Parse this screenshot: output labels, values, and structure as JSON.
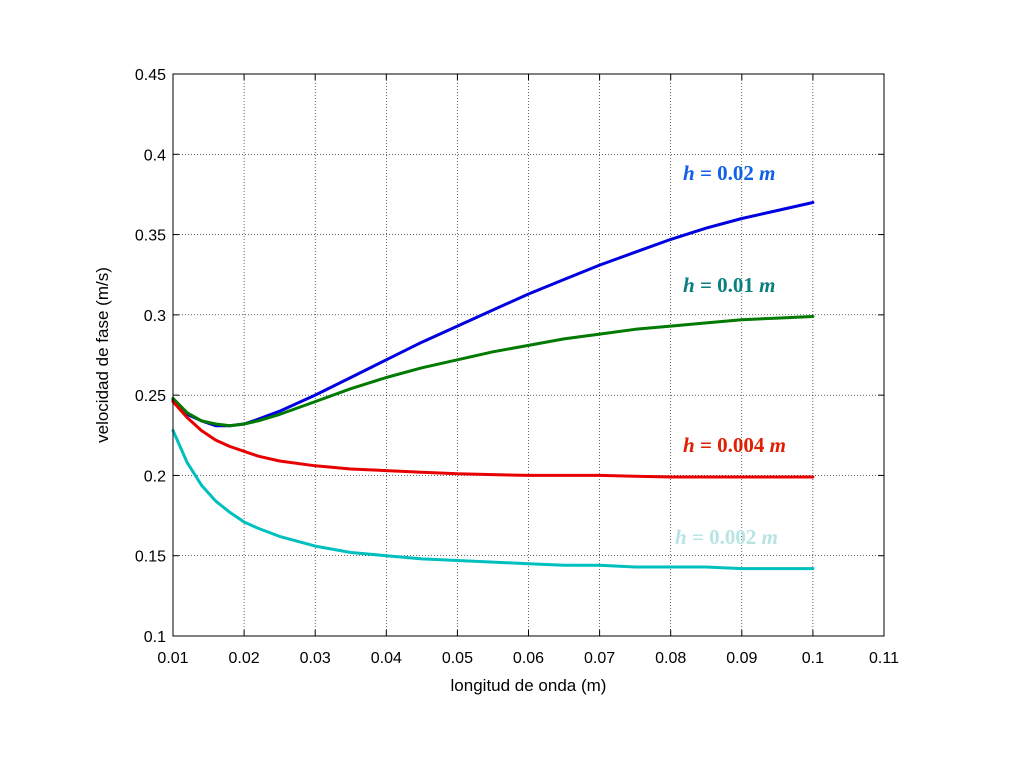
{
  "chart_data": {
    "type": "line",
    "xlabel": "longitud de onda (m)",
    "ylabel": "velocidad de fase (m/s)",
    "xlim": [
      0.01,
      0.11
    ],
    "ylim": [
      0.1,
      0.45
    ],
    "xticks": [
      0.01,
      0.02,
      0.03,
      0.04,
      0.05,
      0.06,
      0.07,
      0.08,
      0.09,
      0.1,
      0.11
    ],
    "xtick_labels": [
      "0.01",
      "0.02",
      "0.03",
      "0.04",
      "0.05",
      "0.06",
      "0.07",
      "0.08",
      "0.09",
      "0.1",
      "0.11"
    ],
    "yticks": [
      0.1,
      0.15,
      0.2,
      0.25,
      0.3,
      0.35,
      0.4,
      0.45
    ],
    "ytick_labels": [
      "0.1",
      "0.15",
      "0.2",
      "0.25",
      "0.3",
      "0.35",
      "0.4",
      "0.45"
    ],
    "grid": true,
    "legend": "none",
    "series": [
      {
        "label_prefix": "h = ",
        "label_value": "0.02",
        "label_unit": "m",
        "color": "#0000e0",
        "label_color": "#1060e8",
        "x": [
          0.01,
          0.012,
          0.014,
          0.016,
          0.018,
          0.02,
          0.022,
          0.025,
          0.03,
          0.035,
          0.04,
          0.045,
          0.05,
          0.055,
          0.06,
          0.065,
          0.07,
          0.075,
          0.08,
          0.085,
          0.09,
          0.095,
          0.1
        ],
        "y": [
          0.247,
          0.238,
          0.234,
          0.231,
          0.231,
          0.232,
          0.235,
          0.24,
          0.25,
          0.261,
          0.272,
          0.283,
          0.293,
          0.303,
          0.313,
          0.322,
          0.331,
          0.339,
          0.347,
          0.354,
          0.36,
          0.365,
          0.37
        ]
      },
      {
        "label_prefix": "h = ",
        "label_value": "0.01",
        "label_unit": "m",
        "color": "#007a00",
        "label_color": "#0a7f7f",
        "x": [
          0.01,
          0.012,
          0.014,
          0.016,
          0.018,
          0.02,
          0.022,
          0.025,
          0.03,
          0.035,
          0.04,
          0.045,
          0.05,
          0.055,
          0.06,
          0.065,
          0.07,
          0.075,
          0.08,
          0.085,
          0.09,
          0.095,
          0.1
        ],
        "y": [
          0.248,
          0.239,
          0.234,
          0.232,
          0.231,
          0.232,
          0.234,
          0.238,
          0.246,
          0.254,
          0.261,
          0.267,
          0.272,
          0.277,
          0.281,
          0.285,
          0.288,
          0.291,
          0.293,
          0.295,
          0.297,
          0.298,
          0.299
        ]
      },
      {
        "label_prefix": "h = ",
        "label_value": "0.004",
        "label_unit": "m",
        "color": "#e80000",
        "label_color": "#e02000",
        "x": [
          0.01,
          0.012,
          0.014,
          0.016,
          0.018,
          0.02,
          0.022,
          0.025,
          0.03,
          0.035,
          0.04,
          0.045,
          0.05,
          0.055,
          0.06,
          0.065,
          0.07,
          0.075,
          0.08,
          0.085,
          0.09,
          0.095,
          0.1
        ],
        "y": [
          0.246,
          0.236,
          0.228,
          0.222,
          0.218,
          0.215,
          0.212,
          0.209,
          0.206,
          0.204,
          0.203,
          0.202,
          0.201,
          0.2005,
          0.2,
          0.2,
          0.2,
          0.1995,
          0.199,
          0.199,
          0.199,
          0.199,
          0.199
        ]
      },
      {
        "label_prefix": "h = ",
        "label_value": "0.002",
        "label_unit": "m",
        "color": "#00bfbf",
        "label_color": "#b8e4e4",
        "x": [
          0.01,
          0.012,
          0.014,
          0.016,
          0.018,
          0.02,
          0.022,
          0.025,
          0.03,
          0.035,
          0.04,
          0.045,
          0.05,
          0.055,
          0.06,
          0.065,
          0.07,
          0.075,
          0.08,
          0.085,
          0.09,
          0.095,
          0.1
        ],
        "y": [
          0.228,
          0.208,
          0.194,
          0.184,
          0.177,
          0.171,
          0.167,
          0.162,
          0.156,
          0.152,
          0.15,
          0.148,
          0.147,
          0.146,
          0.145,
          0.144,
          0.144,
          0.143,
          0.143,
          0.143,
          0.142,
          0.142,
          0.142
        ]
      }
    ]
  }
}
